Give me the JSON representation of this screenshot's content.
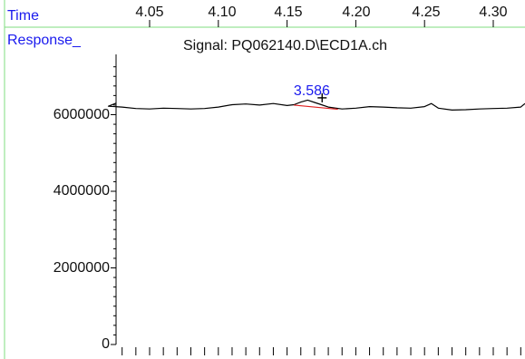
{
  "header": {
    "time_label": "Time",
    "response_label": "Response_"
  },
  "colors": {
    "divider": "#7fdc7f",
    "axis_text": "#1a1aee",
    "trace": "#000000",
    "baseline": "#e02020",
    "peak_label": "#1a1aee"
  },
  "chart_data": {
    "type": "line",
    "title": "Signal: PQ062140.D\\ECD1A.ch",
    "xlabel": "Time",
    "ylabel": "Response_",
    "x_tick_labels": [
      "4.05",
      "4.10",
      "4.15",
      "4.20",
      "4.25",
      "4.30"
    ],
    "x_ticks": [
      4.05,
      4.1,
      4.15,
      4.2,
      4.25,
      4.3
    ],
    "y_tick_labels": [
      "0",
      "2000000",
      "4000000",
      "6000000"
    ],
    "y_ticks": [
      0,
      2000000,
      4000000,
      6000000
    ],
    "xlim": [
      4.01,
      4.335
    ],
    "ylim": [
      0,
      7300000
    ],
    "grid": false,
    "series": [
      {
        "x": [
          4.01,
          4.02,
          4.03,
          4.04,
          4.05,
          4.06,
          4.07,
          4.08,
          4.09,
          4.1,
          4.11,
          4.12,
          4.13,
          4.14,
          4.15,
          4.155,
          4.16,
          4.165,
          4.17,
          4.175,
          4.18,
          4.19,
          4.2,
          4.21,
          4.22,
          4.23,
          4.24,
          4.25,
          4.255,
          4.26,
          4.27,
          4.28,
          4.29,
          4.3,
          4.31,
          4.32,
          4.335
        ],
        "values": [
          6300000,
          6220000,
          6200000,
          6160000,
          6150000,
          6170000,
          6160000,
          6150000,
          6160000,
          6200000,
          6260000,
          6280000,
          6250000,
          6290000,
          6240000,
          6260000,
          6330000,
          6380000,
          6320000,
          6260000,
          6200000,
          6150000,
          6170000,
          6210000,
          6200000,
          6180000,
          6170000,
          6210000,
          6290000,
          6170000,
          6120000,
          6130000,
          6150000,
          6160000,
          6170000,
          6200000,
          6290000
        ]
      }
    ],
    "baseline": {
      "x": [
        4.155,
        4.187
      ],
      "values": [
        6250000,
        6140000
      ]
    },
    "peaks": [
      {
        "label": "3.586",
        "x": 4.168,
        "y": 6380000,
        "apex_x": 4.1755,
        "apex_y": 6440000
      }
    ]
  }
}
